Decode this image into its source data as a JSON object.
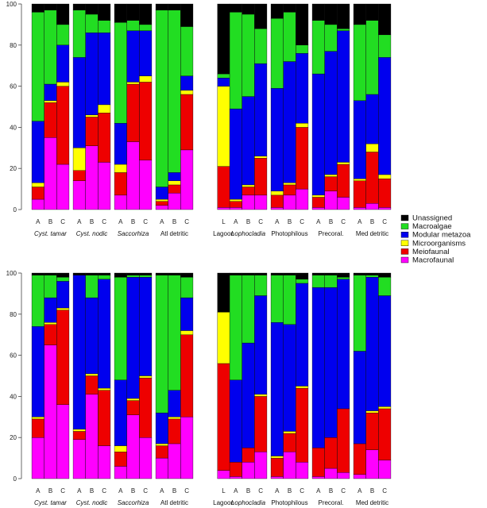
{
  "legend": {
    "position": "right",
    "items": [
      {
        "label": "Unassigned",
        "color": "#000000"
      },
      {
        "label": "Macroalgae",
        "color": "#22dd22"
      },
      {
        "label": "Modular metazoa",
        "color": "#0000ee"
      },
      {
        "label": "Microorganisms",
        "color": "#ffff00"
      },
      {
        "label": "Meiofaunal",
        "color": "#ee0000"
      },
      {
        "label": "Macrofaunal",
        "color": "#ff00ff"
      }
    ]
  },
  "chart_data": [
    {
      "type": "bar",
      "stacked": true,
      "ylim": [
        0,
        100
      ],
      "yticks": [
        0,
        20,
        40,
        60,
        80,
        100
      ],
      "stack_order": [
        "Macrofaunal",
        "Meiofaunal",
        "Microorganisms",
        "Modular metazoa",
        "Macroalgae",
        "Unassigned"
      ],
      "groups": [
        {
          "label": "Cyst. tamar",
          "italic": true,
          "bars": [
            {
              "label": "A",
              "values": [
                5,
                6,
                2,
                30,
                53,
                4
              ]
            },
            {
              "label": "B",
              "values": [
                35,
                17,
                1,
                8,
                36,
                3
              ]
            },
            {
              "label": "C",
              "values": [
                22,
                38,
                2,
                18,
                10,
                10
              ]
            }
          ]
        },
        {
          "label": "Cyst. nodic",
          "italic": true,
          "bars": [
            {
              "label": "A",
              "values": [
                14,
                5,
                11,
                44,
                23,
                3
              ]
            },
            {
              "label": "B",
              "values": [
                31,
                14,
                1,
                40,
                9,
                5
              ]
            },
            {
              "label": "C",
              "values": [
                23,
                24,
                4,
                35,
                6,
                8
              ]
            }
          ]
        },
        {
          "label": "Saccorhiza",
          "italic": true,
          "bars": [
            {
              "label": "A",
              "values": [
                7,
                11,
                4,
                20,
                49,
                9
              ]
            },
            {
              "label": "B",
              "values": [
                33,
                28,
                1,
                25,
                5,
                8
              ]
            },
            {
              "label": "C",
              "values": [
                24,
                38,
                3,
                22,
                3,
                10
              ]
            }
          ]
        },
        {
          "label": "Atl detritic",
          "italic": false,
          "bars": [
            {
              "label": "A",
              "values": [
                2,
                2,
                1,
                6,
                86,
                3
              ]
            },
            {
              "label": "B",
              "values": [
                8,
                4,
                2,
                4,
                79,
                3
              ]
            },
            {
              "label": "C",
              "values": [
                29,
                27,
                2,
                7,
                24,
                11
              ]
            }
          ]
        },
        {
          "label": "Lagoon",
          "italic": false,
          "bars": [
            {
              "label": "L",
              "values": [
                1,
                20,
                39,
                4,
                2,
                34
              ]
            }
          ]
        },
        {
          "label": "Lophocladia",
          "italic": true,
          "bars": [
            {
              "label": "A",
              "values": [
                1,
                3,
                1,
                44,
                47,
                4
              ]
            },
            {
              "label": "B",
              "values": [
                7,
                4,
                1,
                43,
                40,
                5
              ]
            },
            {
              "label": "C",
              "values": [
                7,
                18,
                1,
                45,
                17,
                12
              ]
            }
          ]
        },
        {
          "label": "Photophilous",
          "italic": false,
          "bars": [
            {
              "label": "A",
              "values": [
                1,
                6,
                2,
                50,
                34,
                7
              ]
            },
            {
              "label": "B",
              "values": [
                7,
                5,
                1,
                59,
                24,
                4
              ]
            },
            {
              "label": "C",
              "values": [
                10,
                30,
                2,
                34,
                4,
                20
              ]
            }
          ]
        },
        {
          "label": "Precoral.",
          "italic": false,
          "bars": [
            {
              "label": "A",
              "values": [
                1,
                5,
                1,
                59,
                26,
                8
              ]
            },
            {
              "label": "B",
              "values": [
                9,
                7,
                1,
                60,
                13,
                10
              ]
            },
            {
              "label": "C",
              "values": [
                6,
                16,
                1,
                64,
                1,
                12
              ]
            }
          ]
        },
        {
          "label": "Med detritic",
          "italic": false,
          "bars": [
            {
              "label": "A",
              "values": [
                1,
                13,
                1,
                38,
                37,
                10
              ]
            },
            {
              "label": "B",
              "values": [
                3,
                25,
                4,
                24,
                36,
                8
              ]
            },
            {
              "label": "C",
              "values": [
                1,
                14,
                2,
                57,
                11,
                15
              ]
            }
          ]
        }
      ]
    },
    {
      "type": "bar",
      "stacked": true,
      "ylim": [
        0,
        100
      ],
      "yticks": [
        0,
        20,
        40,
        60,
        80,
        100
      ],
      "stack_order": [
        "Macrofaunal",
        "Meiofaunal",
        "Microorganisms",
        "Modular metazoa",
        "Macroalgae",
        "Unassigned"
      ],
      "groups": [
        {
          "label": "Cyst. tamar",
          "italic": true,
          "bars": [
            {
              "label": "A",
              "values": [
                20,
                9,
                1,
                44,
                25,
                1
              ]
            },
            {
              "label": "B",
              "values": [
                65,
                10,
                1,
                12,
                11,
                1
              ]
            },
            {
              "label": "C",
              "values": [
                36,
                46,
                1,
                13,
                2,
                2
              ]
            }
          ]
        },
        {
          "label": "Cyst. nodic",
          "italic": true,
          "bars": [
            {
              "label": "A",
              "values": [
                19,
                4,
                1,
                75,
                0,
                1
              ]
            },
            {
              "label": "B",
              "values": [
                41,
                9,
                1,
                37,
                11,
                1
              ]
            },
            {
              "label": "C",
              "values": [
                16,
                27,
                1,
                53,
                2,
                1
              ]
            }
          ]
        },
        {
          "label": "Saccorhiza",
          "italic": true,
          "bars": [
            {
              "label": "A",
              "values": [
                6,
                7,
                3,
                32,
                50,
                2
              ]
            },
            {
              "label": "B",
              "values": [
                31,
                7,
                1,
                59,
                1,
                1
              ]
            },
            {
              "label": "C",
              "values": [
                20,
                29,
                1,
                48,
                1,
                1
              ]
            }
          ]
        },
        {
          "label": "Atl detritic",
          "italic": false,
          "bars": [
            {
              "label": "A",
              "values": [
                10,
                6,
                1,
                15,
                67,
                1
              ]
            },
            {
              "label": "B",
              "values": [
                17,
                12,
                1,
                13,
                56,
                1
              ]
            },
            {
              "label": "C",
              "values": [
                30,
                40,
                2,
                16,
                10,
                2
              ]
            }
          ]
        },
        {
          "label": "Lagoon",
          "italic": false,
          "bars": [
            {
              "label": "L",
              "values": [
                4,
                52,
                25,
                0,
                0,
                19
              ]
            }
          ]
        },
        {
          "label": "Lophocladia",
          "italic": true,
          "bars": [
            {
              "label": "A",
              "values": [
                1,
                7,
                0,
                40,
                51,
                1
              ]
            },
            {
              "label": "B",
              "values": [
                8,
                7,
                0,
                51,
                33,
                1
              ]
            },
            {
              "label": "C",
              "values": [
                13,
                27,
                1,
                48,
                10,
                1
              ]
            }
          ]
        },
        {
          "label": "Photophilous",
          "italic": false,
          "bars": [
            {
              "label": "A",
              "values": [
                1,
                9,
                1,
                65,
                23,
                1
              ]
            },
            {
              "label": "B",
              "values": [
                13,
                9,
                1,
                52,
                24,
                1
              ]
            },
            {
              "label": "C",
              "values": [
                8,
                36,
                1,
                50,
                2,
                3
              ]
            }
          ]
        },
        {
          "label": "Precoral.",
          "italic": false,
          "bars": [
            {
              "label": "A",
              "values": [
                1,
                14,
                0,
                78,
                6,
                1
              ]
            },
            {
              "label": "B",
              "values": [
                5,
                15,
                0,
                73,
                6,
                1
              ]
            },
            {
              "label": "C",
              "values": [
                3,
                31,
                0,
                63,
                1,
                2
              ]
            }
          ]
        },
        {
          "label": "Med detritic",
          "italic": false,
          "bars": [
            {
              "label": "A",
              "values": [
                2,
                15,
                0,
                45,
                37,
                1
              ]
            },
            {
              "label": "B",
              "values": [
                14,
                18,
                1,
                65,
                1,
                1
              ]
            },
            {
              "label": "C",
              "values": [
                9,
                25,
                1,
                54,
                9,
                2
              ]
            }
          ]
        }
      ]
    }
  ]
}
